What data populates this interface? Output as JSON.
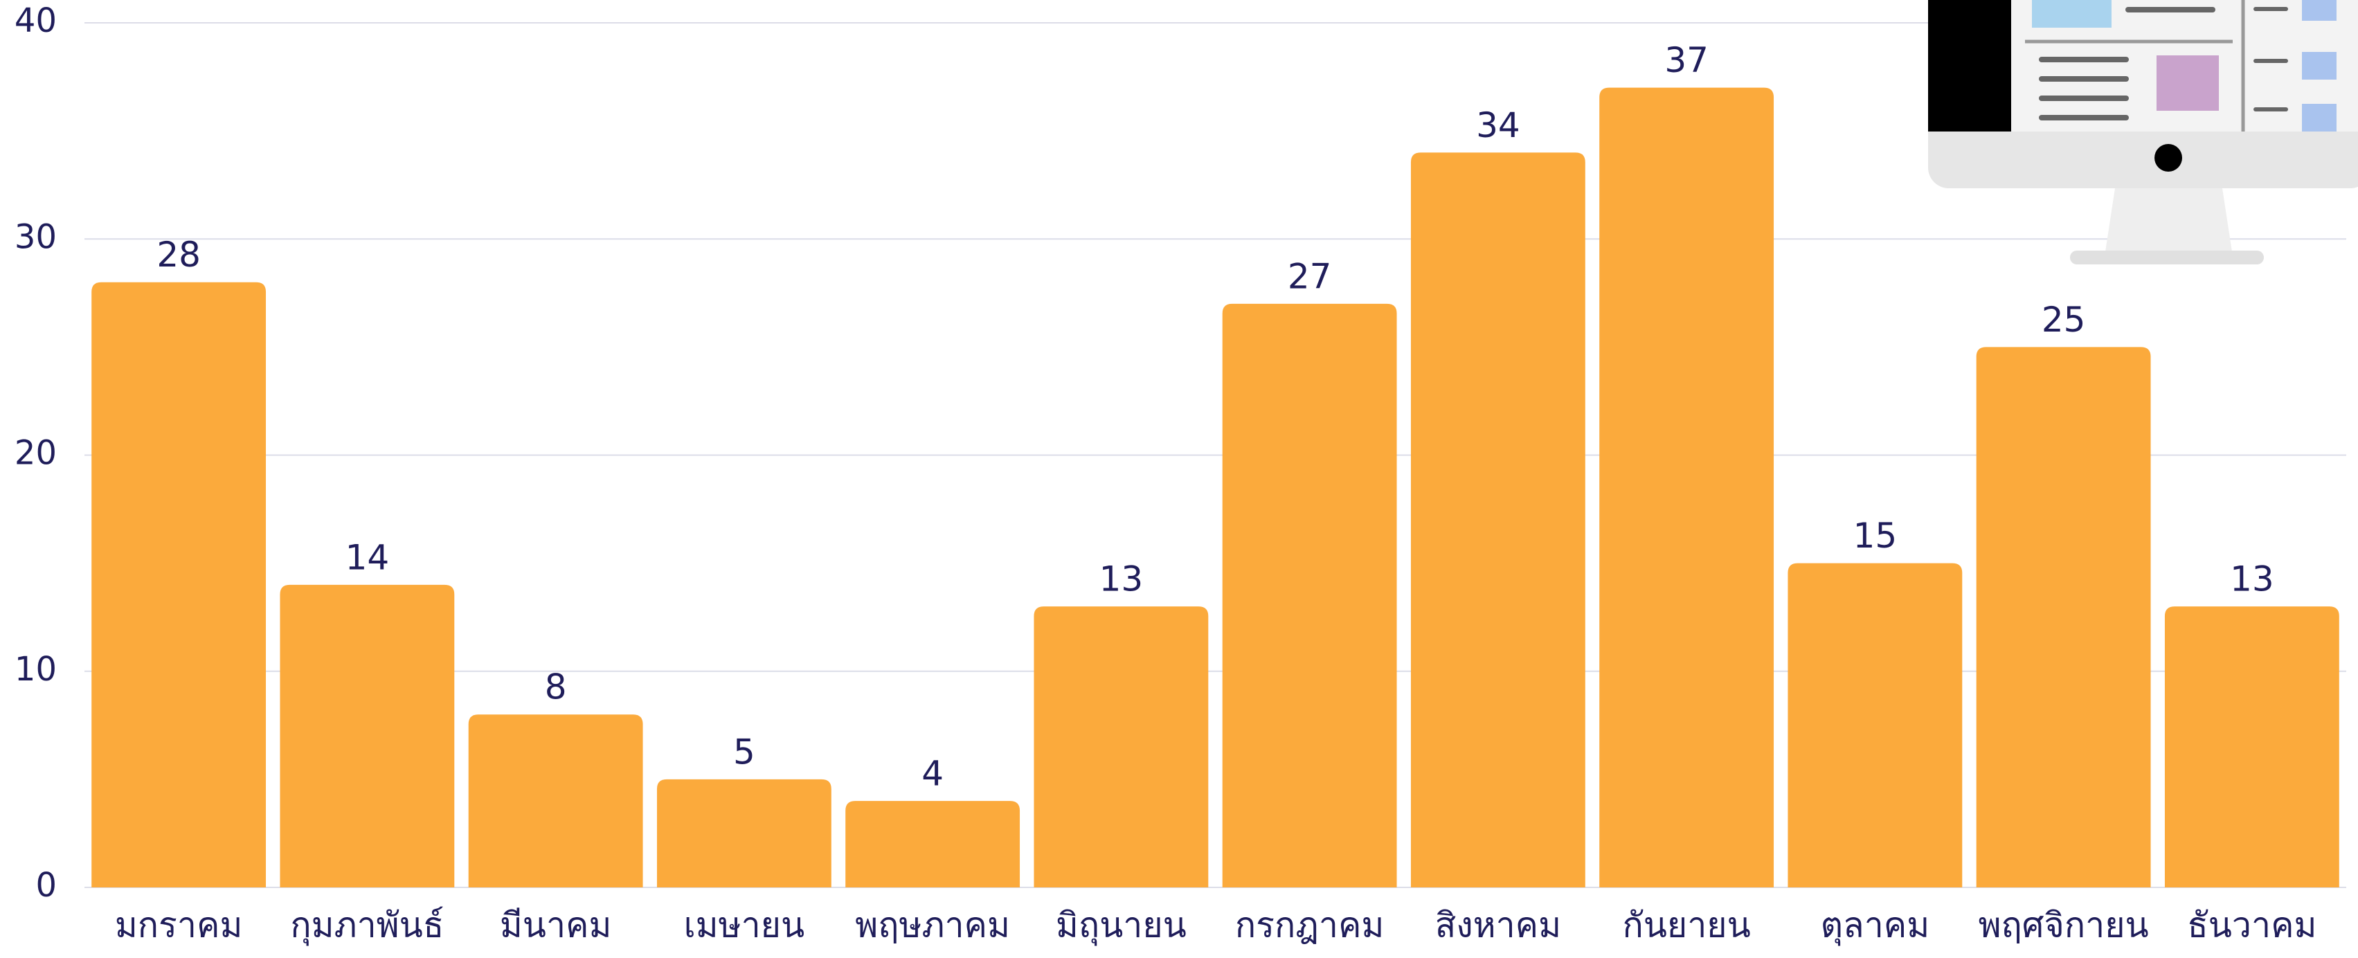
{
  "chart_data": {
    "type": "bar",
    "categories": [
      "มกราคม",
      "กุมภาพันธ์",
      "มีนาคม",
      "เมษายน",
      "พฤษภาคม",
      "มิถุนายน",
      "กรกฎาคม",
      "สิงหาคม",
      "กันยายน",
      "ตุลาคม",
      "พฤศจิกายน",
      "ธันวาคม"
    ],
    "values": [
      28,
      14,
      8,
      5,
      4,
      13,
      27,
      34,
      37,
      15,
      25,
      13
    ],
    "color": "#fbaa3c",
    "ylim": [
      0,
      40
    ],
    "yticks": [
      0,
      10,
      20,
      30,
      40
    ],
    "grid": true
  }
}
